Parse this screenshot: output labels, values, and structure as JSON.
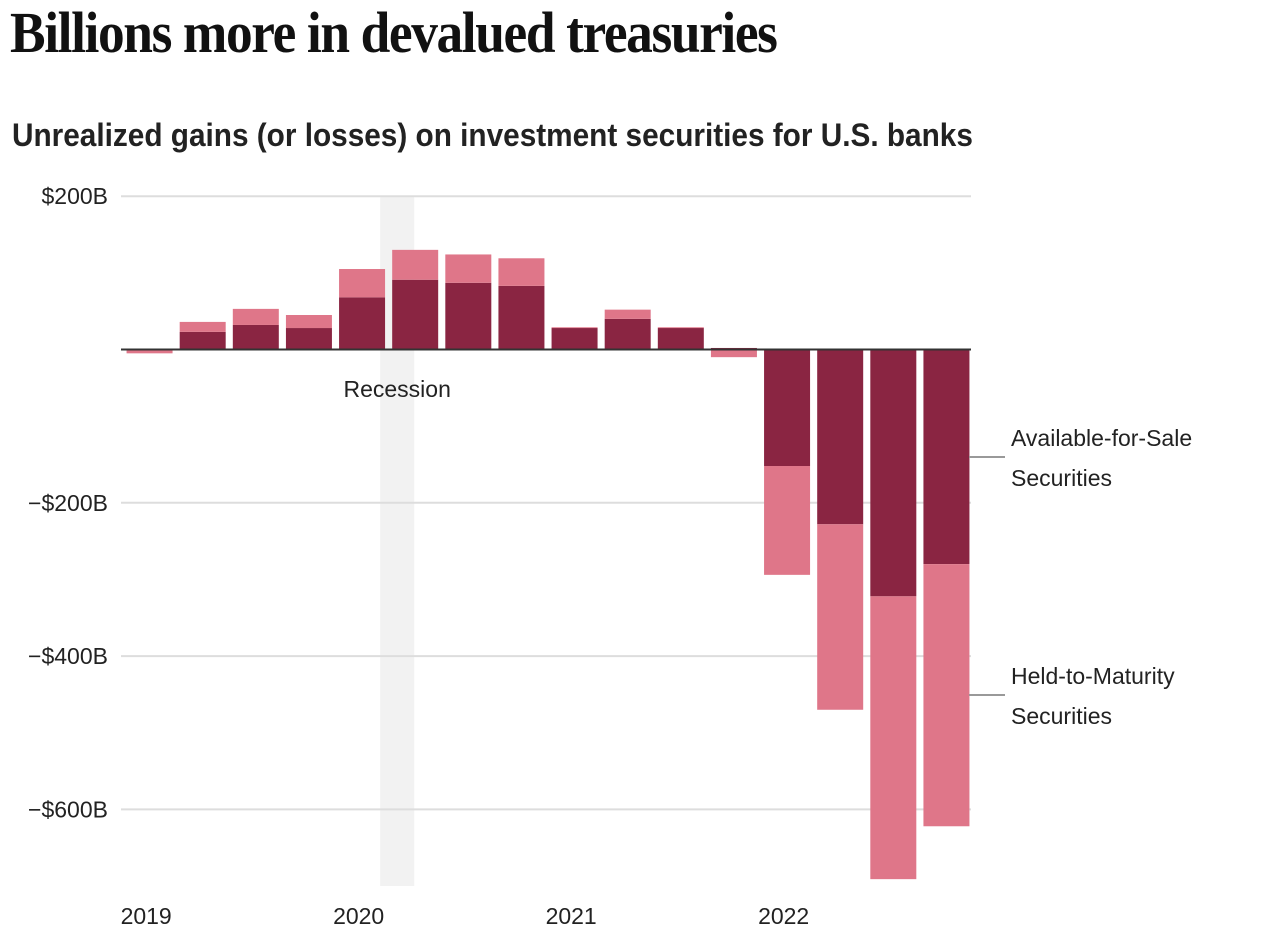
{
  "chart_data": {
    "type": "bar",
    "stacked": true,
    "title": "Billions more in devalued treasuries",
    "subtitle": "Unrealized gains (or losses) on investment securities for U.S. banks",
    "xlabel": "",
    "ylabel": "",
    "ylim": [
      -700,
      200
    ],
    "y_ticks": [
      200,
      0,
      -200,
      -400,
      -600
    ],
    "y_tick_labels": [
      "$200B",
      "",
      "−$200B",
      "−$400B",
      "−$600B"
    ],
    "grid": true,
    "categories": [
      "Q1 2019",
      "Q2 2019",
      "Q3 2019",
      "Q4 2019",
      "Q1 2020",
      "Q2 2020",
      "Q3 2020",
      "Q4 2020",
      "Q1 2021",
      "Q2 2021",
      "Q3 2021",
      "Q4 2021",
      "Q1 2022",
      "Q2 2022",
      "Q3 2022",
      "Q4 2022"
    ],
    "x_tick_labels": [
      {
        "label": "2019",
        "category_index": 0
      },
      {
        "label": "2020",
        "category_index": 4
      },
      {
        "label": "2021",
        "category_index": 8
      },
      {
        "label": "2022",
        "category_index": 12
      }
    ],
    "series": [
      {
        "name": "Available-for-Sale Securities",
        "color": "#8a2542",
        "values": [
          -1,
          23,
          32,
          28,
          68,
          91,
          87,
          83,
          28,
          40,
          28,
          2,
          -152,
          -228,
          -322,
          -280
        ]
      },
      {
        "name": "Held-to-Maturity Securities",
        "color": "#df7689",
        "values": [
          -4,
          13,
          21,
          17,
          37,
          39,
          37,
          36,
          1,
          12,
          1,
          -10,
          -142,
          -242,
          -369,
          -342
        ]
      }
    ],
    "annotations": [
      {
        "type": "shaded-period",
        "label": "Recession",
        "start_category_index": 5,
        "end_category_index": 5
      }
    ],
    "legend": {
      "placement": "right",
      "entries": [
        {
          "series": "Available-for-Sale Securities",
          "lines": [
            "Available-for-Sale",
            "Securities"
          ]
        },
        {
          "series": "Held-to-Maturity Securities",
          "lines": [
            "Held-to-Maturity",
            "Securities"
          ]
        }
      ]
    },
    "colors": {
      "afs": "#8a2542",
      "htm": "#df7689",
      "recession_shade": "#f2f2f2",
      "grid": "#dddddd",
      "zero_line": "#333333"
    }
  }
}
